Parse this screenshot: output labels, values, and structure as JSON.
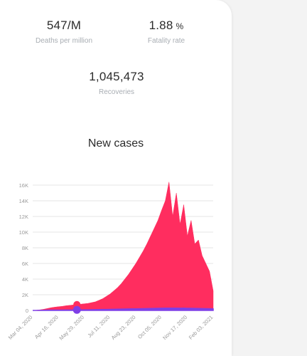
{
  "stats": {
    "deaths_per_million": {
      "value": "547/M",
      "label": "Deaths per million"
    },
    "fatality_rate": {
      "value": "1.88",
      "unit": "%",
      "label": "Fatality rate"
    },
    "recoveries": {
      "value": "1,045,473",
      "label": "Recoveries"
    }
  },
  "chart_title": "New cases",
  "colors": {
    "cases": "#ff2d5f",
    "secondary": "#7f3fe6",
    "grid": "#e6e6e6",
    "tick": "#9a9a9a"
  },
  "chart_data": {
    "type": "area",
    "title": "New cases",
    "xlabel": "",
    "ylabel": "",
    "ylim": [
      0,
      16000
    ],
    "y_ticks": [
      0,
      2000,
      4000,
      6000,
      8000,
      10000,
      12000,
      14000,
      16000
    ],
    "y_tick_labels": [
      "0",
      "2K",
      "4K",
      "6K",
      "8K",
      "10K",
      "12K",
      "14K",
      "16K"
    ],
    "x_tick_labels": [
      "Mar 04, 2020",
      "Apr 16, 2020",
      "May 29, 2020",
      "Jul 11, 2020",
      "Aug 23, 2020",
      "Oct 05, 2020",
      "Nov 17, 2020",
      "Feb 03, 2021"
    ],
    "grid": true,
    "series": [
      {
        "values": [
          0,
          30,
          80,
          150,
          250,
          350,
          420,
          480,
          520,
          600,
          650,
          700,
          750,
          800,
          850,
          900,
          1000,
          1100,
          1300,
          1500,
          1800,
          2100,
          2500,
          2900,
          3400,
          4000,
          4600,
          5300,
          6000,
          6800,
          7600,
          8500,
          9500,
          10500,
          11500,
          12800,
          14000,
          16400,
          12000,
          15000,
          11000,
          13500,
          9500,
          11500,
          8500,
          9000,
          7000,
          6000,
          5000,
          2500
        ]
      },
      {
        "values": [
          0,
          5,
          10,
          20,
          30,
          40,
          45,
          50,
          50,
          55,
          60,
          60,
          70,
          70,
          80,
          80,
          90,
          100,
          110,
          120,
          130,
          140,
          150,
          160,
          170,
          180,
          190,
          200,
          210,
          220,
          230,
          240,
          250,
          260,
          270,
          280,
          290,
          300,
          290,
          300,
          280,
          290,
          270,
          270,
          260,
          250,
          240,
          230,
          220,
          200
        ]
      }
    ],
    "markers": [
      {
        "series": 0,
        "x_index": 12,
        "value": 750
      },
      {
        "series": 1,
        "x_index": 12,
        "value": 70
      }
    ]
  }
}
